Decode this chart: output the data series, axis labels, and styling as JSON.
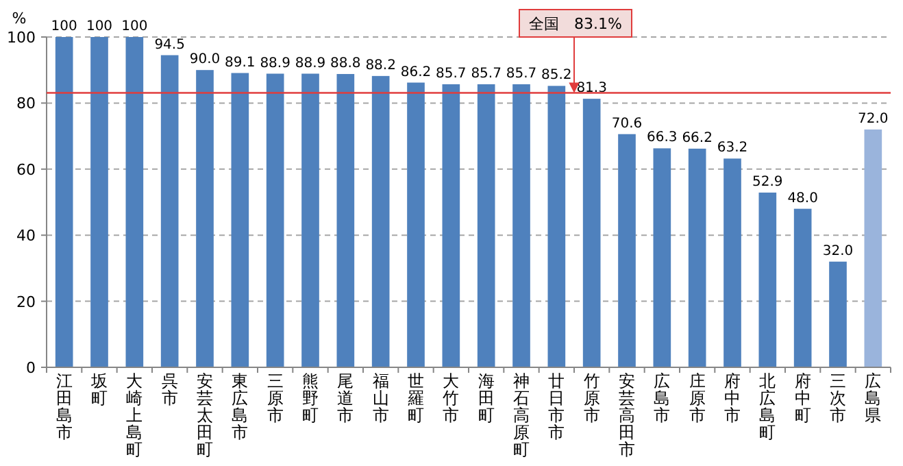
{
  "chart_data": {
    "type": "bar",
    "ylabel": "%",
    "categories": [
      "江田島市",
      "坂町",
      "大崎上島町",
      "呉市",
      "安芸太田町",
      "東広島市",
      "三原市",
      "熊野町",
      "尾道市",
      "福山市",
      "世羅町",
      "大竹市",
      "海田町",
      "神石高原町",
      "廿日市市",
      "竹原市",
      "安芸高田市",
      "広島市",
      "庄原市",
      "府中市",
      "北広島町",
      "府中町",
      "三次市",
      "広島県"
    ],
    "values": [
      100,
      100,
      100,
      94.5,
      90.0,
      89.1,
      88.9,
      88.9,
      88.8,
      88.2,
      86.2,
      85.7,
      85.7,
      85.7,
      85.2,
      81.3,
      70.6,
      66.3,
      66.2,
      63.2,
      52.9,
      48.0,
      32.0,
      72.0
    ],
    "value_labels": [
      "100",
      "100",
      "100",
      "94.5",
      "90.0",
      "89.1",
      "88.9",
      "88.9",
      "88.8",
      "88.2",
      "86.2",
      "85.7",
      "85.7",
      "85.7",
      "85.2",
      "81.3",
      "70.6",
      "66.3",
      "66.2",
      "63.2",
      "52.9",
      "48.0",
      "32.0",
      "72.0"
    ],
    "colors": [
      "#4f81bd",
      "#4f81bd",
      "#4f81bd",
      "#4f81bd",
      "#4f81bd",
      "#4f81bd",
      "#4f81bd",
      "#4f81bd",
      "#4f81bd",
      "#4f81bd",
      "#4f81bd",
      "#4f81bd",
      "#4f81bd",
      "#4f81bd",
      "#4f81bd",
      "#4f81bd",
      "#4f81bd",
      "#4f81bd",
      "#4f81bd",
      "#4f81bd",
      "#4f81bd",
      "#4f81bd",
      "#4f81bd",
      "#9ab4dc"
    ],
    "ylim": [
      0,
      100
    ],
    "yticks": [
      0,
      20,
      40,
      60,
      80,
      100
    ],
    "grid": "y",
    "ref_lines": [
      {
        "axis": "y",
        "value": 83.1,
        "label": "全国　83.1%",
        "color": "#e03c3c"
      }
    ]
  }
}
